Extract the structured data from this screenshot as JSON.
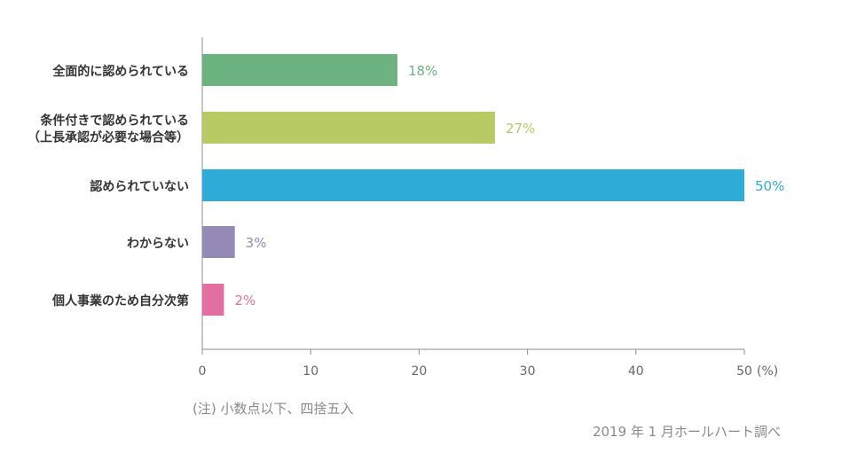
{
  "chart_data": {
    "type": "bar",
    "orientation": "horizontal",
    "categories": [
      [
        "全面的に認められている"
      ],
      [
        "条件付きで認められている",
        "（上長承認が必要な場合等）"
      ],
      [
        "認められていない"
      ],
      [
        "わからない"
      ],
      [
        "個人事業のため自分次第"
      ]
    ],
    "values": [
      18,
      27,
      50,
      3,
      2
    ],
    "value_labels": [
      "18%",
      "27%",
      "50%",
      "3%",
      "2%"
    ],
    "bar_colors": [
      "#6db382",
      "#b8ca64",
      "#2eabd7",
      "#9589b5",
      "#e26f9f"
    ],
    "xlim": [
      0,
      50
    ],
    "xticks": [
      "0",
      "10",
      "20",
      "30",
      "40",
      "50"
    ],
    "xunit": "(%)",
    "grid": false,
    "legend": "none"
  },
  "note": "(注) 小数点以下、四捨五入",
  "source": "2019 年 1 月ホールハート調べ"
}
